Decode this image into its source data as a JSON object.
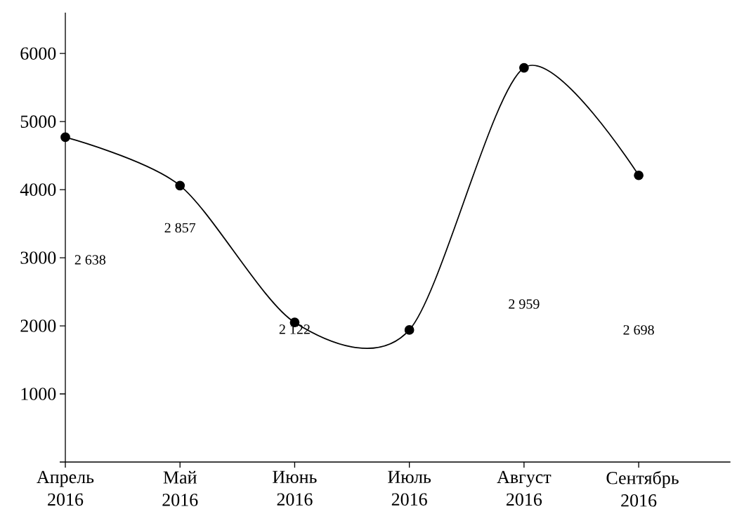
{
  "chart_data": {
    "type": "line",
    "categories": [
      "Апрель 2016",
      "Май 2016",
      "Июнь 2016",
      "Июль 2016",
      "Август 2016",
      "Сентябрь 2016"
    ],
    "values": [
      4770,
      4060,
      2050,
      1940,
      5790,
      4210
    ],
    "color": "#000000",
    "marker": "circle",
    "line_style": "solid",
    "ylim": [
      0,
      6600
    ],
    "yticks": [
      {
        "value": 0,
        "label": null
      },
      1000,
      2000,
      3000,
      4000,
      5000,
      6000
    ],
    "grid": false,
    "annotations": [
      "2 638",
      "2 857",
      "2 122",
      "2 959",
      "2 698"
    ]
  }
}
